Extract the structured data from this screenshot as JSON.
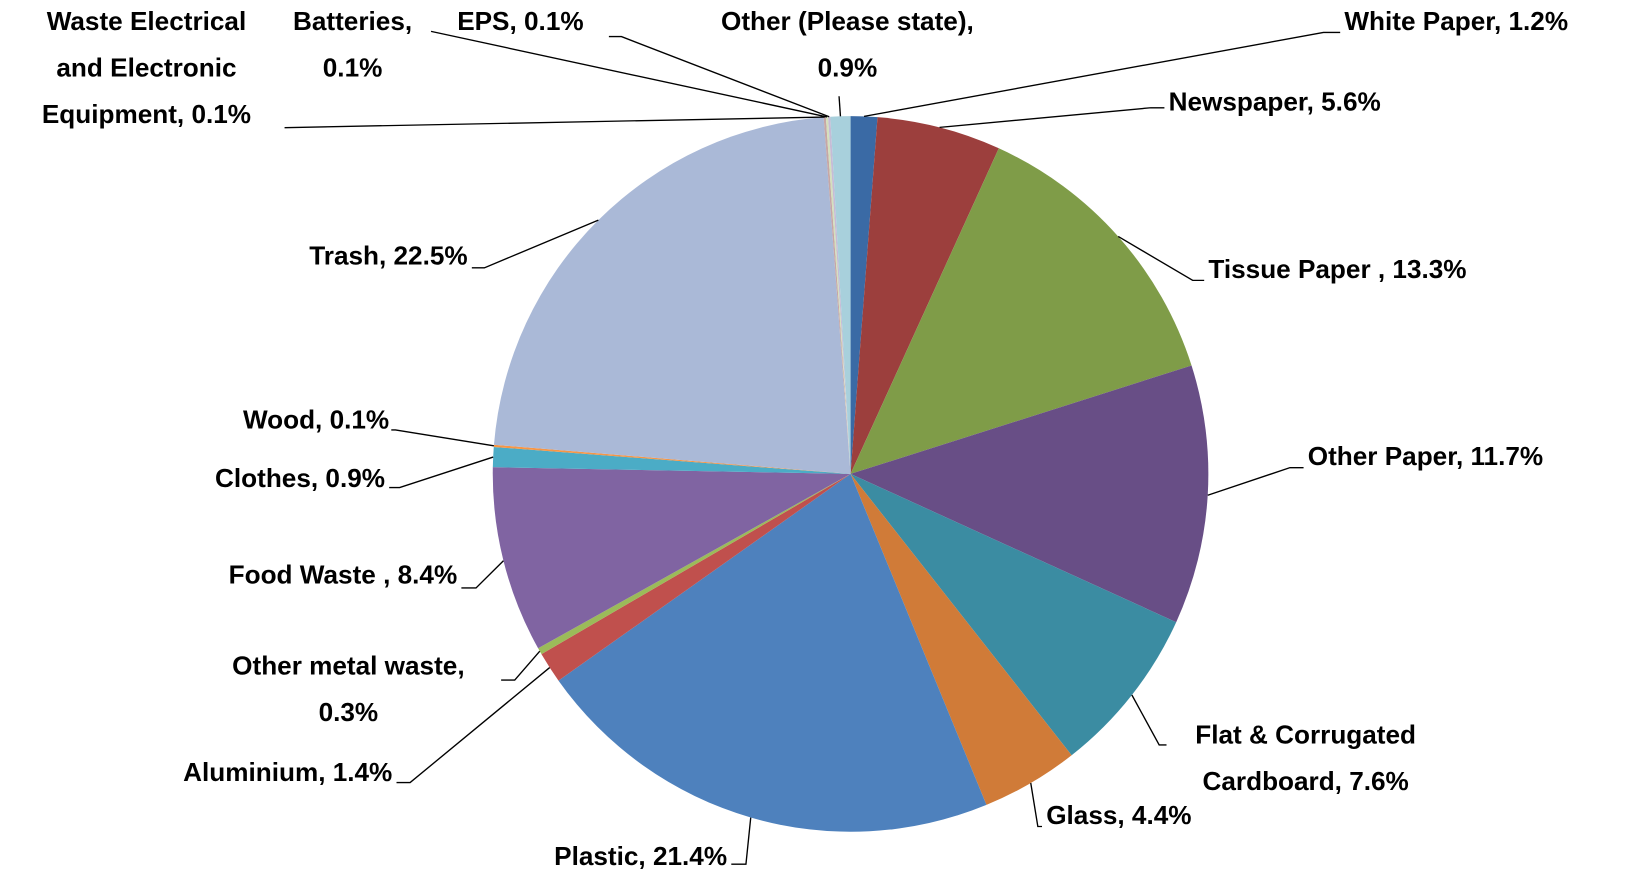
{
  "chart_data": {
    "type": "pie",
    "labels": [
      [
        "White Paper, 1.2%"
      ],
      [
        "Newspaper, 5.6%"
      ],
      [
        "Tissue Paper , 13.3%"
      ],
      [
        "Other Paper, 11.7%"
      ],
      [
        "Flat & Corrugated",
        "Cardboard, 7.6%"
      ],
      [
        "Glass, 4.4%"
      ],
      [
        "Plastic, 21.4%"
      ],
      [
        "Aluminium, 1.4%"
      ],
      [
        "Other metal waste,",
        "0.3%"
      ],
      [
        "Food Waste , 8.4%"
      ],
      [
        "Clothes, 0.9%"
      ],
      [
        "Wood, 0.1%"
      ],
      [
        "Trash, 22.5%"
      ],
      [
        "Waste Electrical",
        "and Electronic",
        "Equipment, 0.1%"
      ],
      [
        "Batteries,",
        "0.1%"
      ],
      [
        "EPS, 0.1%"
      ],
      [
        "Other (Please state),",
        "0.9%"
      ]
    ],
    "values": [
      1.2,
      5.6,
      13.3,
      11.7,
      7.6,
      4.4,
      21.4,
      1.4,
      0.3,
      8.4,
      0.9,
      0.1,
      22.5,
      0.1,
      0.1,
      0.1,
      0.9
    ],
    "colors": [
      "#3a6aa5",
      "#9c3f3d",
      "#7f9c48",
      "#684e86",
      "#3b8ca2",
      "#d07b38",
      "#4e81bd",
      "#c0504d",
      "#9bbb59",
      "#8064a2",
      "#4bacc6",
      "#f79646",
      "#aab9d7",
      "#c6a7a6",
      "#d4e0bd",
      "#c6bcd6",
      "#a8d0dc"
    ]
  }
}
